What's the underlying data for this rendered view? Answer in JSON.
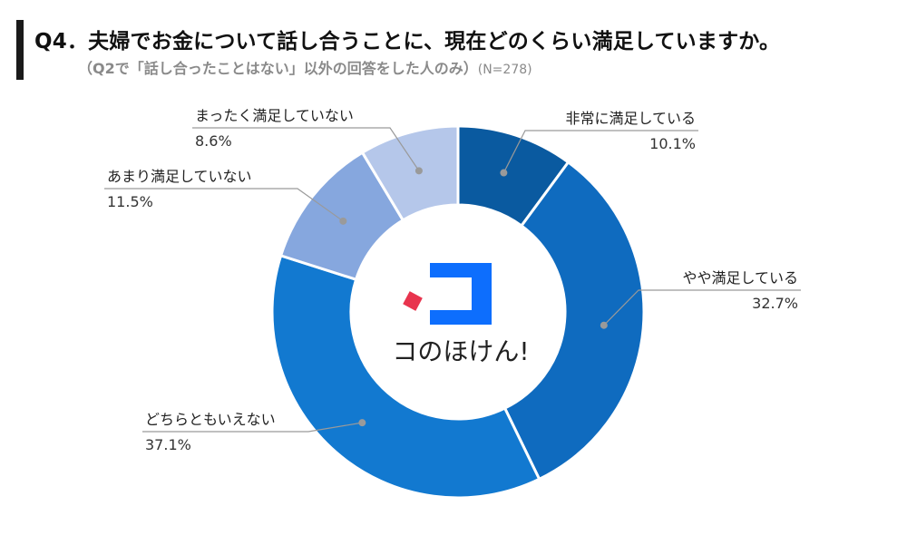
{
  "header": {
    "title": "Q4．夫婦でお金について話し合うことに、現在どのくらい満足していますか。",
    "subtitle": "（Q2で「話し合ったことはない」以外の回答をした人のみ）",
    "sample": "(N=278)"
  },
  "brand": {
    "name": "コのほけん!"
  },
  "colors": {
    "accent": "#1a1a1a",
    "logo_blue": "#0d6efd",
    "logo_red": "#e8344e"
  },
  "chart_data": {
    "type": "pie",
    "donut": true,
    "unit": "%",
    "categories": [
      "非常に満足している",
      "やや満足している",
      "どちらともいえない",
      "あまり満足していない",
      "まったく満足していない"
    ],
    "values": [
      10.1,
      32.7,
      37.1,
      11.5,
      8.6
    ],
    "value_labels": [
      "10.1%",
      "32.7%",
      "37.1%",
      "11.5%",
      "8.6%"
    ],
    "colors": [
      "#0a5aa0",
      "#0f6bbf",
      "#1279d0",
      "#86a7de",
      "#b5c7ea"
    ]
  }
}
